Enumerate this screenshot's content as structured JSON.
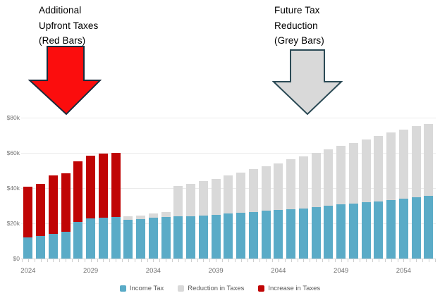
{
  "annotations": {
    "left": {
      "lines": [
        "Additional",
        "Upfront Taxes",
        "(Red Bars)"
      ],
      "arrow_fill": "#fb0d0d",
      "arrow_outline": "#1c2a3a"
    },
    "right": {
      "lines": [
        "Future Tax",
        "Reduction",
        "(Grey Bars)"
      ],
      "arrow_fill": "#d9d9d9",
      "arrow_outline": "#2b4a55"
    }
  },
  "chart_data": {
    "type": "bar",
    "stacked": true,
    "units": "USD (thousands)",
    "x": [
      2024,
      2025,
      2026,
      2027,
      2028,
      2029,
      2030,
      2031,
      2032,
      2033,
      2034,
      2035,
      2036,
      2037,
      2038,
      2039,
      2040,
      2041,
      2042,
      2043,
      2044,
      2045,
      2046,
      2047,
      2048,
      2049,
      2050,
      2051,
      2052,
      2053,
      2054,
      2055,
      2056
    ],
    "series": [
      {
        "name": "Income Tax",
        "color": "#5aabc7",
        "values": [
          12.2,
          12.9,
          14.1,
          15.2,
          21.0,
          22.7,
          23.4,
          23.8,
          22.0,
          22.6,
          23.1,
          23.5,
          23.9,
          24.2,
          24.6,
          25.0,
          25.5,
          26.0,
          26.6,
          27.2,
          27.8,
          28.1,
          28.5,
          29.1,
          29.9,
          30.7,
          31.2,
          32.0,
          32.5,
          33.3,
          34.1,
          35.0,
          35.6
        ]
      },
      {
        "name": "Reduction in Taxes",
        "color": "#d9d9d9",
        "values": [
          0,
          0,
          0,
          0,
          0,
          0,
          0,
          0,
          2.0,
          2.0,
          2.5,
          2.9,
          17.2,
          18.1,
          19.5,
          20.3,
          21.7,
          22.8,
          24.2,
          25.2,
          26.4,
          28.2,
          29.6,
          30.9,
          32.2,
          33.2,
          34.6,
          35.7,
          37.1,
          38.2,
          39.2,
          40.2,
          40.8
        ]
      },
      {
        "name": "Increase in Taxes",
        "color": "#c00505",
        "values": [
          28.5,
          29.6,
          33.2,
          33.3,
          34.2,
          35.7,
          36.2,
          36.2,
          0,
          0,
          0,
          0,
          0,
          0,
          0,
          0,
          0,
          0,
          0,
          0,
          0,
          0,
          0,
          0,
          0,
          0,
          0,
          0,
          0,
          0,
          0,
          0,
          0
        ]
      }
    ],
    "ylim": [
      0,
      80
    ],
    "yticks": [
      0,
      20,
      40,
      60,
      80
    ],
    "ytick_labels": [
      "$0",
      "$20k",
      "$40k",
      "$60k",
      "$80k"
    ],
    "xtick_years": [
      2024,
      2029,
      2034,
      2039,
      2044,
      2049,
      2054
    ],
    "grid": true,
    "legend_position": "bottom"
  }
}
